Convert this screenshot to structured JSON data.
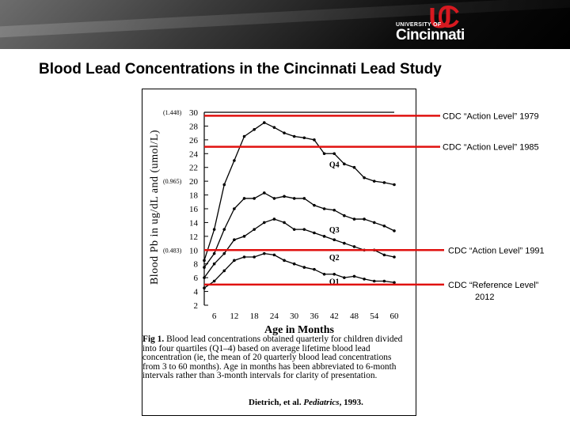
{
  "slide_title": "Blood Lead Concentrations in the Cincinnati Lead Study",
  "logo": {
    "university_of": "UNIVERSITY OF",
    "name": "Cincinnati"
  },
  "chart_data": {
    "type": "line",
    "ylabel": "Blood Pb in ug/dL and (umol/L)",
    "xlabel": "Age in Months",
    "x": [
      3,
      6,
      9,
      12,
      15,
      18,
      21,
      24,
      27,
      30,
      33,
      36,
      39,
      42,
      45,
      48,
      51,
      54,
      57,
      60
    ],
    "x_ticks": [
      6,
      12,
      18,
      24,
      30,
      36,
      42,
      48,
      54,
      60
    ],
    "y_ticks": [
      2,
      4,
      6,
      8,
      10,
      12,
      14,
      16,
      18,
      20,
      22,
      24,
      26,
      28,
      30
    ],
    "ylim": [
      2,
      30
    ],
    "xlim": [
      3,
      60
    ],
    "umol_labels": [
      {
        "y": 30,
        "text": "(1.448)"
      },
      {
        "y": 20,
        "text": "(0.965)"
      },
      {
        "y": 10,
        "text": "(0.483)"
      }
    ],
    "series": [
      {
        "name": "Q4",
        "label_x": 42,
        "label_y": 22.5,
        "values": [
          8.5,
          13,
          19.5,
          23,
          26.5,
          27.5,
          28.5,
          27.8,
          27,
          26.5,
          26.3,
          26,
          24,
          24,
          22.5,
          22,
          20.5,
          20,
          19.8,
          19.5
        ]
      },
      {
        "name": "Q3",
        "label_x": 42,
        "label_y": 13,
        "values": [
          7.5,
          9.5,
          13,
          16,
          17.5,
          17.5,
          18.3,
          17.5,
          17.8,
          17.5,
          17.5,
          16.5,
          16,
          15.8,
          15,
          14.5,
          14.5,
          14,
          13.5,
          12.8
        ]
      },
      {
        "name": "Q2",
        "label_x": 42,
        "label_y": 9,
        "values": [
          6,
          8,
          9.5,
          11.5,
          12,
          13,
          14,
          14.5,
          14,
          13,
          13,
          12.5,
          12,
          11.5,
          11,
          10.5,
          10,
          10,
          9.3,
          9
        ]
      },
      {
        "name": "Q1",
        "label_x": 42,
        "label_y": 5.5,
        "values": [
          4.5,
          5.5,
          7,
          8.5,
          9,
          9,
          9.5,
          9.3,
          8.5,
          8,
          7.5,
          7.2,
          6.5,
          6.5,
          6,
          6.2,
          5.8,
          5.5,
          5.5,
          5.3
        ]
      }
    ],
    "reference_lines": [
      {
        "y": 29.5,
        "label": "CDC “Action Level” 1979"
      },
      {
        "y": 25,
        "label": "CDC “Action Level” 1985"
      },
      {
        "y": 10,
        "label": "CDC “Action Level” 1991"
      },
      {
        "y": 5,
        "label": "CDC “Reference Level”",
        "label2": "2012"
      }
    ],
    "reference_color": "#e0110f"
  },
  "caption": {
    "lead": "Fig 1.",
    "text": "Blood lead concentrations obtained quarterly for children divided into four quartiles (Q1–4) based on average lifetime blood lead concentration (ie, the mean of 20 quarterly blood lead concentrations from 3 to 60 months). Age in months has been abbreviated to 6-month intervals rather than 3-month intervals for clarity of presentation."
  },
  "citation": {
    "authors": "Dietrich, et al.",
    "journal": "Pediatrics",
    "year": ", 1993."
  }
}
